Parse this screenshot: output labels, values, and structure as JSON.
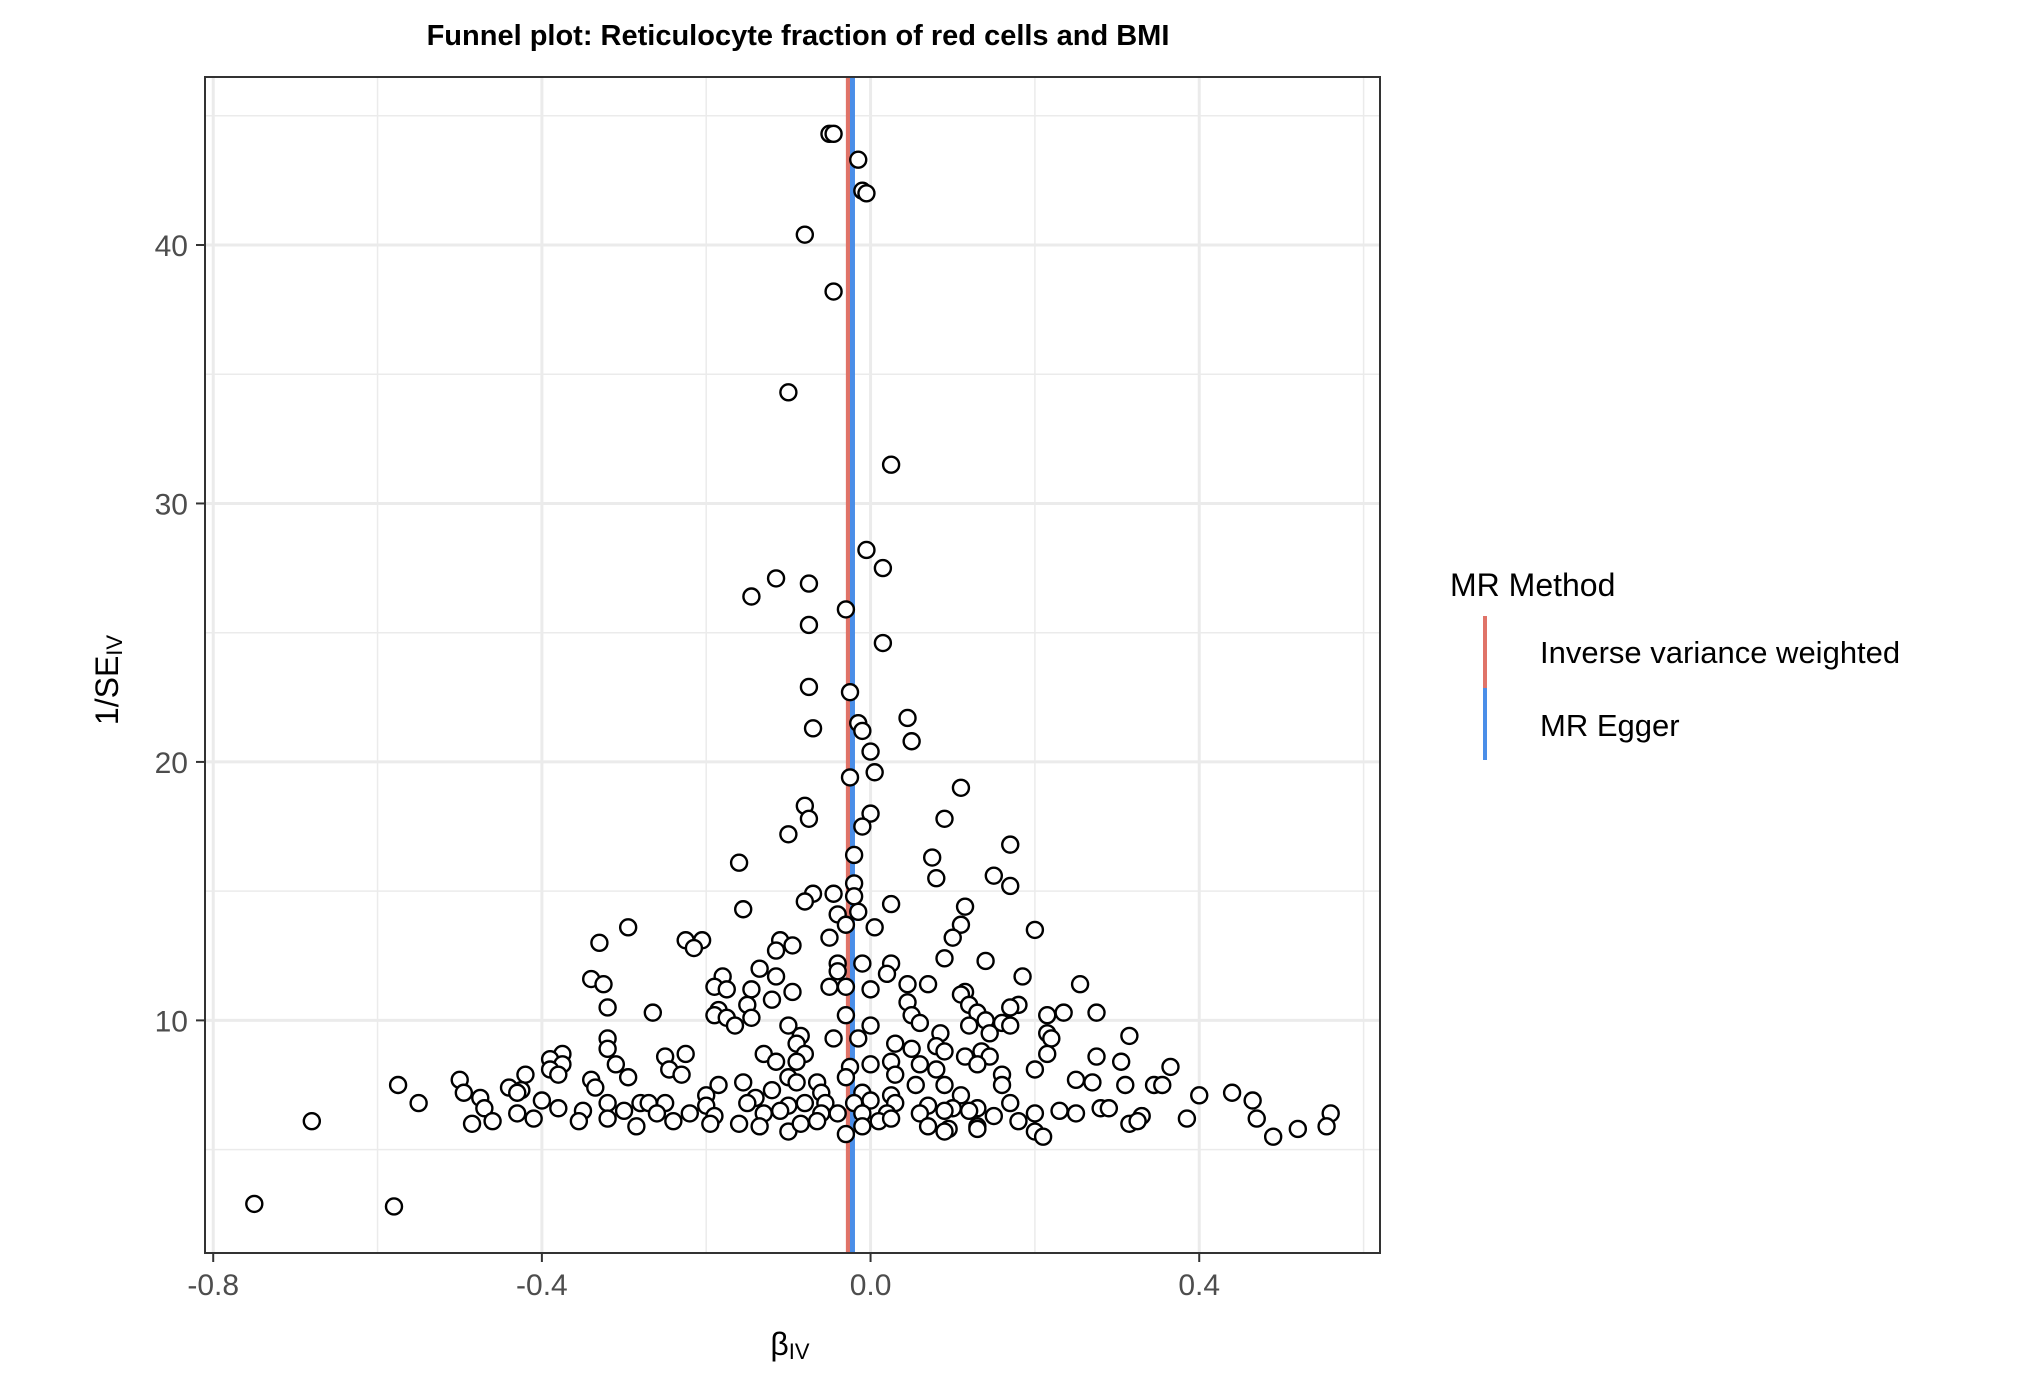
{
  "chart_data": {
    "type": "scatter",
    "title": "Funnel plot: Reticulocyte fraction of red cells and BMI",
    "xlabel": {
      "main": "β",
      "sub": "IV"
    },
    "ylabel": {
      "main": "1/SE",
      "sub": "IV"
    },
    "xlim": [
      -0.81,
      0.62
    ],
    "ylim": [
      1,
      46.5
    ],
    "x_ticks": [
      -0.8,
      -0.4,
      0.0,
      0.4
    ],
    "x_tick_labels": [
      "-0.8",
      "-0.4",
      "0.0",
      "0.4"
    ],
    "y_ticks": [
      10,
      20,
      30,
      40
    ],
    "y_tick_labels": [
      "10",
      "20",
      "30",
      "40"
    ],
    "grid": true,
    "legend": {
      "title": "MR Method",
      "placement": "right",
      "entries": [
        {
          "label": "Inverse variance weighted",
          "color": "#e07368"
        },
        {
          "label": "MR Egger",
          "color": "#4a8ee8"
        }
      ]
    },
    "vlines": [
      {
        "method": "Inverse variance weighted",
        "x": -0.027,
        "color": "#e07368"
      },
      {
        "method": "MR Egger",
        "x": -0.022,
        "color": "#4a8ee8"
      }
    ],
    "points": [
      [
        -0.05,
        44.3
      ],
      [
        -0.045,
        44.3
      ],
      [
        -0.015,
        43.3
      ],
      [
        -0.01,
        42.1
      ],
      [
        -0.005,
        42.0
      ],
      [
        -0.08,
        40.4
      ],
      [
        -0.045,
        38.2
      ],
      [
        -0.1,
        34.3
      ],
      [
        0.025,
        31.5
      ],
      [
        -0.005,
        28.2
      ],
      [
        0.015,
        27.5
      ],
      [
        -0.115,
        27.1
      ],
      [
        -0.075,
        26.9
      ],
      [
        -0.145,
        26.4
      ],
      [
        -0.03,
        25.9
      ],
      [
        -0.075,
        25.3
      ],
      [
        0.015,
        24.6
      ],
      [
        -0.075,
        22.9
      ],
      [
        -0.025,
        22.7
      ],
      [
        -0.015,
        21.5
      ],
      [
        -0.01,
        21.2
      ],
      [
        -0.07,
        21.3
      ],
      [
        0.045,
        21.7
      ],
      [
        0.05,
        20.8
      ],
      [
        0.0,
        20.4
      ],
      [
        0.005,
        19.6
      ],
      [
        -0.025,
        19.4
      ],
      [
        0.11,
        19.0
      ],
      [
        -0.08,
        18.3
      ],
      [
        -0.075,
        17.8
      ],
      [
        0.0,
        18.0
      ],
      [
        0.09,
        17.8
      ],
      [
        -0.01,
        17.5
      ],
      [
        -0.1,
        17.2
      ],
      [
        0.17,
        16.8
      ],
      [
        -0.02,
        16.4
      ],
      [
        0.075,
        16.3
      ],
      [
        -0.16,
        16.1
      ],
      [
        0.08,
        15.5
      ],
      [
        0.15,
        15.6
      ],
      [
        0.17,
        15.2
      ],
      [
        -0.02,
        15.3
      ],
      [
        -0.07,
        14.9
      ],
      [
        -0.045,
        14.9
      ],
      [
        -0.02,
        14.8
      ],
      [
        -0.08,
        14.6
      ],
      [
        0.025,
        14.5
      ],
      [
        -0.155,
        14.3
      ],
      [
        0.115,
        14.4
      ],
      [
        -0.04,
        14.1
      ],
      [
        -0.015,
        14.2
      ],
      [
        -0.03,
        13.7
      ],
      [
        0.11,
        13.7
      ],
      [
        0.005,
        13.6
      ],
      [
        -0.295,
        13.6
      ],
      [
        0.2,
        13.5
      ],
      [
        -0.05,
        13.2
      ],
      [
        -0.225,
        13.1
      ],
      [
        -0.205,
        13.1
      ],
      [
        -0.33,
        13.0
      ],
      [
        -0.215,
        12.8
      ],
      [
        -0.11,
        13.1
      ],
      [
        -0.115,
        12.7
      ],
      [
        -0.095,
        12.9
      ],
      [
        0.1,
        13.2
      ],
      [
        0.09,
        12.4
      ],
      [
        0.14,
        12.3
      ],
      [
        -0.04,
        12.2
      ],
      [
        0.025,
        12.2
      ],
      [
        -0.01,
        12.2
      ],
      [
        -0.135,
        12.0
      ],
      [
        -0.04,
        11.9
      ],
      [
        0.02,
        11.8
      ],
      [
        -0.18,
        11.7
      ],
      [
        -0.115,
        11.7
      ],
      [
        0.185,
        11.7
      ],
      [
        -0.34,
        11.6
      ],
      [
        -0.325,
        11.4
      ],
      [
        0.255,
        11.4
      ],
      [
        0.045,
        11.4
      ],
      [
        0.07,
        11.4
      ],
      [
        -0.03,
        11.3
      ],
      [
        -0.05,
        11.3
      ],
      [
        -0.19,
        11.3
      ],
      [
        -0.175,
        11.2
      ],
      [
        -0.145,
        11.2
      ],
      [
        -0.095,
        11.1
      ],
      [
        0.0,
        11.2
      ],
      [
        0.115,
        11.1
      ],
      [
        0.11,
        11.0
      ],
      [
        0.12,
        10.6
      ],
      [
        -0.15,
        10.6
      ],
      [
        -0.12,
        10.8
      ],
      [
        0.045,
        10.7
      ],
      [
        -0.32,
        10.5
      ],
      [
        -0.185,
        10.4
      ],
      [
        0.18,
        10.6
      ],
      [
        0.17,
        10.5
      ],
      [
        0.235,
        10.3
      ],
      [
        0.13,
        10.3
      ],
      [
        0.215,
        10.2
      ],
      [
        0.275,
        10.3
      ],
      [
        -0.265,
        10.3
      ],
      [
        -0.19,
        10.2
      ],
      [
        -0.175,
        10.1
      ],
      [
        0.05,
        10.2
      ],
      [
        -0.03,
        10.2
      ],
      [
        -0.145,
        10.1
      ],
      [
        0.06,
        9.9
      ],
      [
        0.16,
        9.9
      ],
      [
        0.14,
        10.0
      ],
      [
        0.17,
        9.8
      ],
      [
        0.12,
        9.8
      ],
      [
        0.0,
        9.8
      ],
      [
        -0.165,
        9.8
      ],
      [
        -0.1,
        9.8
      ],
      [
        -0.085,
        9.4
      ],
      [
        0.215,
        9.5
      ],
      [
        0.315,
        9.4
      ],
      [
        -0.32,
        9.3
      ],
      [
        -0.045,
        9.3
      ],
      [
        -0.015,
        9.3
      ],
      [
        0.085,
        9.5
      ],
      [
        0.145,
        9.5
      ],
      [
        -0.09,
        9.1
      ],
      [
        0.22,
        9.3
      ],
      [
        0.03,
        9.1
      ],
      [
        0.08,
        9.0
      ],
      [
        -0.32,
        8.9
      ],
      [
        -0.375,
        8.7
      ],
      [
        -0.13,
        8.7
      ],
      [
        0.05,
        8.9
      ],
      [
        0.09,
        8.8
      ],
      [
        0.135,
        8.8
      ],
      [
        -0.08,
        8.7
      ],
      [
        -0.25,
        8.6
      ],
      [
        -0.225,
        8.7
      ],
      [
        0.275,
        8.6
      ],
      [
        0.305,
        8.4
      ],
      [
        0.115,
        8.6
      ],
      [
        0.145,
        8.6
      ],
      [
        0.215,
        8.7
      ],
      [
        -0.39,
        8.5
      ],
      [
        -0.375,
        8.3
      ],
      [
        -0.31,
        8.3
      ],
      [
        -0.115,
        8.4
      ],
      [
        -0.09,
        8.4
      ],
      [
        0.0,
        8.3
      ],
      [
        0.025,
        8.4
      ],
      [
        0.06,
        8.3
      ],
      [
        0.13,
        8.3
      ],
      [
        -0.39,
        8.1
      ],
      [
        -0.245,
        8.1
      ],
      [
        -0.025,
        8.2
      ],
      [
        0.08,
        8.1
      ],
      [
        0.2,
        8.1
      ],
      [
        0.365,
        8.2
      ],
      [
        -0.42,
        7.9
      ],
      [
        -0.38,
        7.9
      ],
      [
        -0.295,
        7.8
      ],
      [
        -0.23,
        7.9
      ],
      [
        -0.1,
        7.8
      ],
      [
        -0.03,
        7.8
      ],
      [
        0.03,
        7.9
      ],
      [
        0.16,
        7.9
      ],
      [
        0.25,
        7.7
      ],
      [
        -0.5,
        7.7
      ],
      [
        -0.34,
        7.7
      ],
      [
        -0.185,
        7.5
      ],
      [
        -0.155,
        7.6
      ],
      [
        -0.09,
        7.6
      ],
      [
        -0.065,
        7.6
      ],
      [
        0.055,
        7.5
      ],
      [
        0.09,
        7.5
      ],
      [
        0.16,
        7.5
      ],
      [
        0.27,
        7.6
      ],
      [
        0.31,
        7.5
      ],
      [
        0.345,
        7.5
      ],
      [
        0.355,
        7.5
      ],
      [
        -0.575,
        7.5
      ],
      [
        -0.44,
        7.4
      ],
      [
        -0.425,
        7.3
      ],
      [
        -0.335,
        7.4
      ],
      [
        -0.12,
        7.3
      ],
      [
        -0.06,
        7.2
      ],
      [
        -0.01,
        7.2
      ],
      [
        0.025,
        7.1
      ],
      [
        0.11,
        7.1
      ],
      [
        -0.43,
        7.2
      ],
      [
        -0.495,
        7.2
      ],
      [
        -0.2,
        7.1
      ],
      [
        -0.14,
        7.0
      ],
      [
        0.4,
        7.1
      ],
      [
        0.44,
        7.2
      ],
      [
        0.465,
        6.9
      ],
      [
        -0.475,
        7.0
      ],
      [
        -0.4,
        6.9
      ],
      [
        -0.32,
        6.8
      ],
      [
        -0.28,
        6.8
      ],
      [
        -0.27,
        6.8
      ],
      [
        -0.25,
        6.8
      ],
      [
        -0.2,
        6.7
      ],
      [
        -0.15,
        6.8
      ],
      [
        -0.1,
        6.7
      ],
      [
        -0.08,
        6.8
      ],
      [
        -0.055,
        6.8
      ],
      [
        -0.02,
        6.8
      ],
      [
        0.0,
        6.9
      ],
      [
        0.03,
        6.8
      ],
      [
        0.07,
        6.7
      ],
      [
        0.1,
        6.6
      ],
      [
        0.13,
        6.6
      ],
      [
        0.17,
        6.8
      ],
      [
        0.23,
        6.5
      ],
      [
        0.28,
        6.6
      ],
      [
        0.29,
        6.6
      ],
      [
        -0.55,
        6.8
      ],
      [
        -0.47,
        6.6
      ],
      [
        -0.38,
        6.6
      ],
      [
        -0.43,
        6.4
      ],
      [
        -0.35,
        6.5
      ],
      [
        -0.3,
        6.5
      ],
      [
        -0.26,
        6.4
      ],
      [
        -0.22,
        6.4
      ],
      [
        -0.19,
        6.3
      ],
      [
        -0.13,
        6.4
      ],
      [
        -0.11,
        6.5
      ],
      [
        -0.06,
        6.4
      ],
      [
        -0.04,
        6.4
      ],
      [
        -0.01,
        6.4
      ],
      [
        0.02,
        6.4
      ],
      [
        0.06,
        6.4
      ],
      [
        0.09,
        6.5
      ],
      [
        0.12,
        6.5
      ],
      [
        0.15,
        6.3
      ],
      [
        0.2,
        6.4
      ],
      [
        0.25,
        6.4
      ],
      [
        0.33,
        6.3
      ],
      [
        0.47,
        6.2
      ],
      [
        0.56,
        6.4
      ],
      [
        -0.68,
        6.1
      ],
      [
        -0.485,
        6.0
      ],
      [
        -0.46,
        6.1
      ],
      [
        -0.41,
        6.2
      ],
      [
        -0.355,
        6.1
      ],
      [
        -0.32,
        6.2
      ],
      [
        -0.285,
        5.9
      ],
      [
        -0.24,
        6.1
      ],
      [
        -0.195,
        6.0
      ],
      [
        -0.16,
        6.0
      ],
      [
        -0.135,
        5.9
      ],
      [
        -0.1,
        5.7
      ],
      [
        -0.085,
        6.0
      ],
      [
        -0.065,
        6.1
      ],
      [
        -0.03,
        5.6
      ],
      [
        -0.01,
        5.9
      ],
      [
        0.01,
        6.1
      ],
      [
        0.025,
        6.2
      ],
      [
        0.07,
        5.9
      ],
      [
        0.095,
        5.8
      ],
      [
        0.09,
        5.7
      ],
      [
        0.13,
        5.9
      ],
      [
        0.13,
        5.8
      ],
      [
        0.18,
        6.1
      ],
      [
        0.2,
        5.7
      ],
      [
        0.21,
        5.5
      ],
      [
        0.315,
        6.0
      ],
      [
        0.325,
        6.1
      ],
      [
        0.385,
        6.2
      ],
      [
        0.49,
        5.5
      ],
      [
        0.52,
        5.8
      ],
      [
        0.555,
        5.9
      ],
      [
        -0.75,
        2.9
      ],
      [
        -0.58,
        2.8
      ]
    ]
  }
}
